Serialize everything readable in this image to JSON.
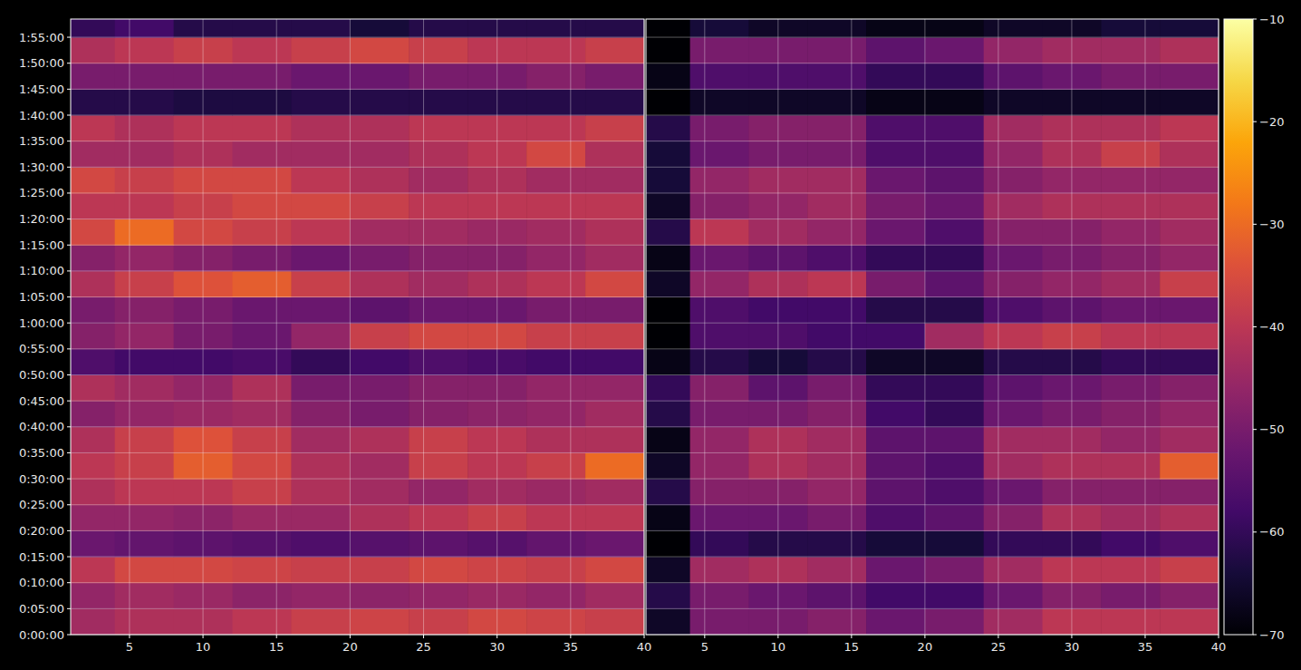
{
  "chart_data": [
    {
      "type": "heatmap",
      "grid": true,
      "tick_labels": true,
      "xlim": [
        1,
        40
      ],
      "ylim": [
        0,
        7110
      ],
      "xticks": [
        5,
        10,
        15,
        20,
        25,
        30,
        35,
        40
      ],
      "yticks": [
        {
          "value": 0,
          "label": "0:00:00"
        },
        {
          "value": 300,
          "label": "0:05:00"
        },
        {
          "value": 600,
          "label": "0:10:00"
        },
        {
          "value": 900,
          "label": "0:15:00"
        },
        {
          "value": 1200,
          "label": "0:20:00"
        },
        {
          "value": 1500,
          "label": "0:25:00"
        },
        {
          "value": 1800,
          "label": "0:30:00"
        },
        {
          "value": 2100,
          "label": "0:35:00"
        },
        {
          "value": 2400,
          "label": "0:40:00"
        },
        {
          "value": 2700,
          "label": "0:45:00"
        },
        {
          "value": 3000,
          "label": "0:50:00"
        },
        {
          "value": 3300,
          "label": "0:55:00"
        },
        {
          "value": 3600,
          "label": "1:00:00"
        },
        {
          "value": 3900,
          "label": "1:05:00"
        },
        {
          "value": 4200,
          "label": "1:10:00"
        },
        {
          "value": 4500,
          "label": "1:15:00"
        },
        {
          "value": 4800,
          "label": "1:20:00"
        },
        {
          "value": 5100,
          "label": "1:25:00"
        },
        {
          "value": 5400,
          "label": "1:30:00"
        },
        {
          "value": 5700,
          "label": "1:35:00"
        },
        {
          "value": 6000,
          "label": "1:40:00"
        },
        {
          "value": 6300,
          "label": "1:45:00"
        },
        {
          "value": 6600,
          "label": "1:50:00"
        },
        {
          "value": 6900,
          "label": "1:55:00"
        }
      ],
      "x": [
        2,
        6,
        10,
        14,
        18,
        22,
        26,
        30,
        34,
        38
      ],
      "y": [
        150,
        450,
        750,
        1050,
        1350,
        1650,
        1950,
        2250,
        2550,
        2850,
        3150,
        3450,
        3750,
        4050,
        4350,
        4650,
        4950,
        5250,
        5550,
        5850,
        6150,
        6450,
        6750,
        7050
      ],
      "cells": [
        [
          -44,
          -42,
          -42,
          -40,
          -38,
          -37,
          -38,
          -36,
          -37,
          -38
        ],
        [
          -46,
          -44,
          -45,
          -47,
          -46,
          -47,
          -46,
          -45,
          -46,
          -44
        ],
        [
          -40,
          -36,
          -36,
          -37,
          -38,
          -38,
          -36,
          -37,
          -38,
          -36
        ],
        [
          -52,
          -53,
          -54,
          -55,
          -56,
          -55,
          -54,
          -55,
          -53,
          -52
        ],
        [
          -46,
          -46,
          -47,
          -45,
          -45,
          -42,
          -40,
          -38,
          -40,
          -40
        ],
        [
          -42,
          -40,
          -40,
          -38,
          -42,
          -44,
          -46,
          -44,
          -45,
          -44
        ],
        [
          -40,
          -38,
          -32,
          -36,
          -42,
          -44,
          -38,
          -40,
          -38,
          -30
        ],
        [
          -42,
          -38,
          -34,
          -38,
          -44,
          -42,
          -38,
          -40,
          -42,
          -42
        ],
        [
          -48,
          -46,
          -45,
          -44,
          -48,
          -50,
          -48,
          -47,
          -46,
          -44
        ],
        [
          -42,
          -44,
          -46,
          -42,
          -50,
          -50,
          -48,
          -48,
          -46,
          -46
        ],
        [
          -56,
          -58,
          -58,
          -57,
          -60,
          -58,
          -56,
          -57,
          -58,
          -58
        ],
        [
          -48,
          -46,
          -50,
          -52,
          -46,
          -38,
          -36,
          -36,
          -38,
          -38
        ],
        [
          -50,
          -48,
          -50,
          -52,
          -52,
          -54,
          -52,
          -52,
          -50,
          -50
        ],
        [
          -42,
          -38,
          -34,
          -32,
          -38,
          -42,
          -44,
          -42,
          -40,
          -36
        ],
        [
          -48,
          -46,
          -48,
          -50,
          -52,
          -50,
          -48,
          -48,
          -46,
          -44
        ],
        [
          -36,
          -30,
          -36,
          -38,
          -40,
          -44,
          -44,
          -45,
          -44,
          -42
        ],
        [
          -40,
          -40,
          -38,
          -36,
          -36,
          -38,
          -40,
          -40,
          -40,
          -40
        ],
        [
          -36,
          -38,
          -36,
          -36,
          -40,
          -42,
          -44,
          -42,
          -44,
          -44
        ],
        [
          -44,
          -44,
          -42,
          -44,
          -44,
          -44,
          -42,
          -40,
          -36,
          -42
        ],
        [
          -40,
          -42,
          -40,
          -40,
          -42,
          -42,
          -40,
          -40,
          -40,
          -38
        ],
        [
          -62,
          -62,
          -63,
          -63,
          -62,
          -62,
          -62,
          -62,
          -62,
          -62
        ],
        [
          -50,
          -50,
          -50,
          -50,
          -52,
          -52,
          -50,
          -50,
          -48,
          -50
        ],
        [
          -42,
          -40,
          -38,
          -40,
          -38,
          -36,
          -38,
          -40,
          -40,
          -38
        ],
        [
          -60,
          -58,
          -62,
          -62,
          -62,
          -64,
          -62,
          -62,
          -62,
          -62
        ]
      ]
    },
    {
      "type": "heatmap",
      "grid": true,
      "tick_labels": "x",
      "xlim": [
        1,
        40
      ],
      "ylim": [
        0,
        7110
      ],
      "xticks": [
        5,
        10,
        15,
        20,
        25,
        30,
        35,
        40
      ],
      "yticks": [
        0,
        300,
        600,
        900,
        1200,
        1500,
        1800,
        2100,
        2400,
        2700,
        3000,
        3300,
        3600,
        3900,
        4200,
        4500,
        4800,
        5100,
        5400,
        5700,
        6000,
        6300,
        6600,
        6900
      ],
      "x": [
        2,
        6,
        10,
        14,
        18,
        22,
        26,
        30,
        34,
        38
      ],
      "y": [
        150,
        450,
        750,
        1050,
        1350,
        1650,
        1950,
        2250,
        2550,
        2850,
        3150,
        3450,
        3750,
        4050,
        4350,
        4650,
        4950,
        5250,
        5550,
        5850,
        6150,
        6450,
        6750,
        7050
      ],
      "cells": [
        [
          -66,
          -50,
          -50,
          -48,
          -52,
          -50,
          -44,
          -40,
          -40,
          -40
        ],
        [
          -62,
          -50,
          -52,
          -54,
          -58,
          -58,
          -52,
          -48,
          -50,
          -48
        ],
        [
          -66,
          -44,
          -42,
          -44,
          -52,
          -50,
          -44,
          -40,
          -40,
          -38
        ],
        [
          -70,
          -60,
          -62,
          -62,
          -64,
          -64,
          -60,
          -60,
          -58,
          -56
        ],
        [
          -68,
          -52,
          -52,
          -50,
          -56,
          -54,
          -48,
          -42,
          -44,
          -42
        ],
        [
          -62,
          -48,
          -48,
          -46,
          -54,
          -56,
          -52,
          -48,
          -48,
          -48
        ],
        [
          -66,
          -46,
          -42,
          -44,
          -54,
          -56,
          -44,
          -42,
          -42,
          -32
        ],
        [
          -68,
          -46,
          -42,
          -44,
          -54,
          -54,
          -44,
          -44,
          -46,
          -44
        ],
        [
          -62,
          -50,
          -50,
          -48,
          -58,
          -60,
          -52,
          -50,
          -48,
          -46
        ],
        [
          -60,
          -48,
          -54,
          -50,
          -60,
          -60,
          -54,
          -52,
          -50,
          -48
        ],
        [
          -68,
          -62,
          -64,
          -62,
          -66,
          -66,
          -62,
          -62,
          -60,
          -60
        ],
        [
          -70,
          -56,
          -56,
          -58,
          -58,
          -44,
          -40,
          -38,
          -40,
          -40
        ],
        [
          -70,
          -56,
          -58,
          -58,
          -62,
          -62,
          -56,
          -54,
          -52,
          -52
        ],
        [
          -66,
          -46,
          -42,
          -40,
          -50,
          -54,
          -48,
          -46,
          -44,
          -38
        ],
        [
          -68,
          -52,
          -54,
          -56,
          -60,
          -60,
          -52,
          -50,
          -48,
          -46
        ],
        [
          -62,
          -40,
          -44,
          -46,
          -52,
          -56,
          -48,
          -48,
          -46,
          -44
        ],
        [
          -66,
          -48,
          -46,
          -44,
          -50,
          -52,
          -44,
          -42,
          -42,
          -42
        ],
        [
          -64,
          -46,
          -44,
          -44,
          -52,
          -54,
          -48,
          -46,
          -46,
          -46
        ],
        [
          -64,
          -52,
          -50,
          -50,
          -56,
          -56,
          -46,
          -42,
          -38,
          -42
        ],
        [
          -62,
          -50,
          -48,
          -48,
          -56,
          -56,
          -44,
          -42,
          -42,
          -40
        ],
        [
          -70,
          -66,
          -66,
          -66,
          -68,
          -68,
          -66,
          -66,
          -66,
          -66
        ],
        [
          -68,
          -56,
          -56,
          -56,
          -60,
          -60,
          -54,
          -52,
          -50,
          -50
        ],
        [
          -70,
          -50,
          -50,
          -50,
          -54,
          -52,
          -46,
          -44,
          -44,
          -42
        ],
        [
          -70,
          -64,
          -66,
          -66,
          -68,
          -68,
          -66,
          -66,
          -64,
          -64
        ]
      ],
      "colorbar": {
        "range": [
          -70,
          -10
        ],
        "ticks": [
          {
            "value": -70,
            "label": "−70"
          },
          {
            "value": -60,
            "label": "−60"
          },
          {
            "value": -50,
            "label": "−50"
          },
          {
            "value": -40,
            "label": "−40"
          },
          {
            "value": -30,
            "label": "−30"
          },
          {
            "value": -20,
            "label": "−20"
          },
          {
            "value": -10,
            "label": "−10"
          }
        ]
      }
    }
  ]
}
